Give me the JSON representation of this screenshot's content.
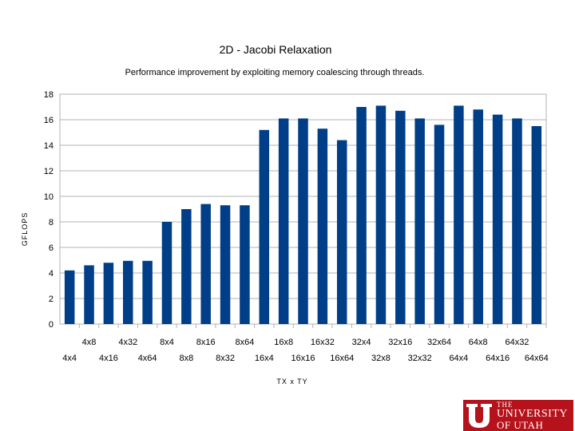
{
  "chart_data": {
    "type": "bar",
    "title": "2D - Jacobi Relaxation",
    "subtitle": "Performance improvement by exploiting memory coalescing through threads.",
    "xlabel": "TX x TY",
    "ylabel": "GFLOPS",
    "ylim": [
      0,
      18
    ],
    "yticks": [
      "0",
      "2",
      "4",
      "6",
      "8",
      "10",
      "12",
      "14",
      "16",
      "18"
    ],
    "grid": true,
    "legend": "none",
    "color": "#003f88",
    "categories": [
      "4x4",
      "4x8",
      "4x16",
      "4x32",
      "4x64",
      "8x4",
      "8x8",
      "8x16",
      "8x32",
      "8x64",
      "16x4",
      "16x8",
      "16x16",
      "16x32",
      "16x64",
      "32x4",
      "32x8",
      "32x16",
      "32x32",
      "32x64",
      "64x4",
      "64x8",
      "64x16",
      "64x32",
      "64x64"
    ],
    "values": [
      4.2,
      4.6,
      4.8,
      4.95,
      4.95,
      8.0,
      9.0,
      9.4,
      9.3,
      9.3,
      15.2,
      16.1,
      16.1,
      15.3,
      14.4,
      17.0,
      17.1,
      16.7,
      16.1,
      15.6,
      17.1,
      16.8,
      16.4,
      16.1,
      15.5
    ]
  },
  "logo": {
    "line1": "THE",
    "line2": "UNIVERSITY",
    "line3": "OF UTAH",
    "color": "#b5121b"
  }
}
